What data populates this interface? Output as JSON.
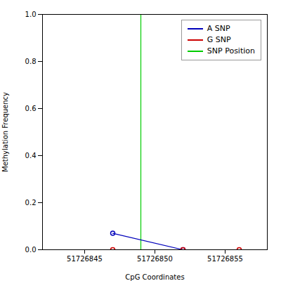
{
  "chart_data": {
    "type": "line",
    "xlabel": "CpG Coordinates",
    "ylabel": "Methylation Frequency",
    "series": [
      {
        "name": "A SNP",
        "color": "#0000bb",
        "marker": "circle",
        "line_style": "solid",
        "x": [
          51726847,
          51726852
        ],
        "values": [
          0.07,
          0.0
        ]
      },
      {
        "name": "G SNP",
        "color": "#cc0000",
        "marker": "circle",
        "line_style": "solid",
        "x": [
          51726847,
          51726852,
          51726856
        ],
        "values": [
          0.0,
          0.0,
          0.0
        ]
      }
    ],
    "vline": {
      "name": "SNP Position",
      "x": 51726849,
      "color": "#00cc00"
    },
    "xlim": [
      51726842,
      51726858
    ],
    "xticks": [
      51726845,
      51726850,
      51726855
    ],
    "ylim": [
      0.0,
      1.0
    ],
    "yticks": [
      {
        "value": 0.0,
        "label": "0.0"
      },
      0.2,
      0.4,
      0.6,
      0.8,
      {
        "value": 1.0,
        "label": "1.0"
      }
    ],
    "grid": false,
    "legend": "upper right"
  }
}
